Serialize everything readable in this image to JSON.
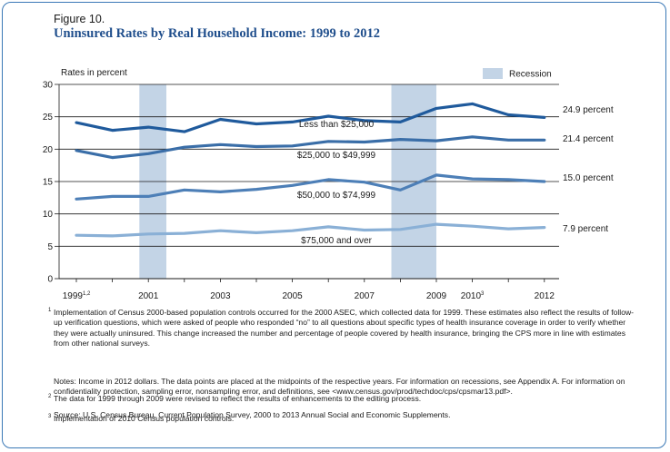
{
  "figure": {
    "label": "Figure 10.",
    "title": "Uninsured Rates by Real Household Income: 1999 to 2012"
  },
  "chart_data": {
    "type": "line",
    "ylabel": "Rates in percent",
    "ylim": [
      0,
      30
    ],
    "yticks": [
      0,
      5,
      10,
      15,
      20,
      25,
      30
    ],
    "x": [
      1999,
      2000,
      2001,
      2002,
      2003,
      2004,
      2005,
      2006,
      2007,
      2008,
      2009,
      2010,
      2011,
      2012
    ],
    "xtick_labels": [
      {
        "x": 1999,
        "label": "1999",
        "sup": "1,2"
      },
      {
        "x": 2001,
        "label": "2001",
        "sup": ""
      },
      {
        "x": 2003,
        "label": "2003",
        "sup": ""
      },
      {
        "x": 2005,
        "label": "2005",
        "sup": ""
      },
      {
        "x": 2007,
        "label": "2007",
        "sup": ""
      },
      {
        "x": 2009,
        "label": "2009",
        "sup": ""
      },
      {
        "x": 2010,
        "label": "2010",
        "sup": "3"
      },
      {
        "x": 2012,
        "label": "2012",
        "sup": ""
      }
    ],
    "recessions": [
      [
        2000.75,
        2001.5
      ],
      [
        2007.75,
        2009.0
      ]
    ],
    "legend": {
      "label": "Recession",
      "color": "#c3d4e6"
    },
    "series": [
      {
        "name": "Less than $25,000",
        "color": "#1f5a9c",
        "end_label": "24.9 percent",
        "values": [
          24.1,
          22.9,
          23.4,
          22.7,
          24.6,
          23.9,
          24.2,
          25.1,
          24.4,
          24.2,
          26.3,
          27.0,
          25.3,
          24.9
        ]
      },
      {
        "name": "$25,000 to $49,999",
        "color": "#3a6ea8",
        "end_label": "21.4 percent",
        "values": [
          19.8,
          18.7,
          19.3,
          20.3,
          20.7,
          20.4,
          20.5,
          21.2,
          21.1,
          21.5,
          21.3,
          21.9,
          21.4,
          21.4
        ]
      },
      {
        "name": "$50,000 to $74,999",
        "color": "#4d7fb7",
        "end_label": "15.0 percent",
        "values": [
          12.3,
          12.7,
          12.7,
          13.7,
          13.4,
          13.8,
          14.4,
          15.3,
          14.9,
          13.7,
          16.0,
          15.4,
          15.3,
          15.0
        ]
      },
      {
        "name": "$75,000 and over",
        "color": "#8ab0d6",
        "end_label": "7.9 percent",
        "values": [
          6.7,
          6.6,
          6.9,
          7.0,
          7.4,
          7.1,
          7.4,
          8.0,
          7.5,
          7.6,
          8.4,
          8.1,
          7.7,
          7.9
        ]
      }
    ]
  },
  "notes": {
    "note1": "Implementation of Census 2000-based population controls occurred for the 2000 ASEC, which collected data for 1999. These estimates also reflect the results of follow-up verification questions, which were asked of people who responded “no” to all questions about specific types of health insurance coverage in order to verify whether they were actually uninsured. This change increased the number and percentage of people covered by health insurance, bringing the CPS more in line with estimates from other national surveys.",
    "note2": "The data for 1999 through 2009 were revised to reflect the results of enhancements to the editing process.",
    "note3": "Implementation of 2010 Census population controls.",
    "note4": "Notes: Income in 2012 dollars. The data points are placed at the midpoints of the respective years. For information on recessions, see Appendix A. For information on confidentiality protection, sampling error, nonsampling error, and definitions, see <www.census.gov/prod/techdoc/cps/cpsmar13.pdf>.",
    "note5": "Source: U.S. Census Bureau, Current Population Survey, 2000 to 2013 Annual Social and Economic Supplements.",
    "mark1": "1",
    "mark2": "2",
    "mark3": "3"
  }
}
